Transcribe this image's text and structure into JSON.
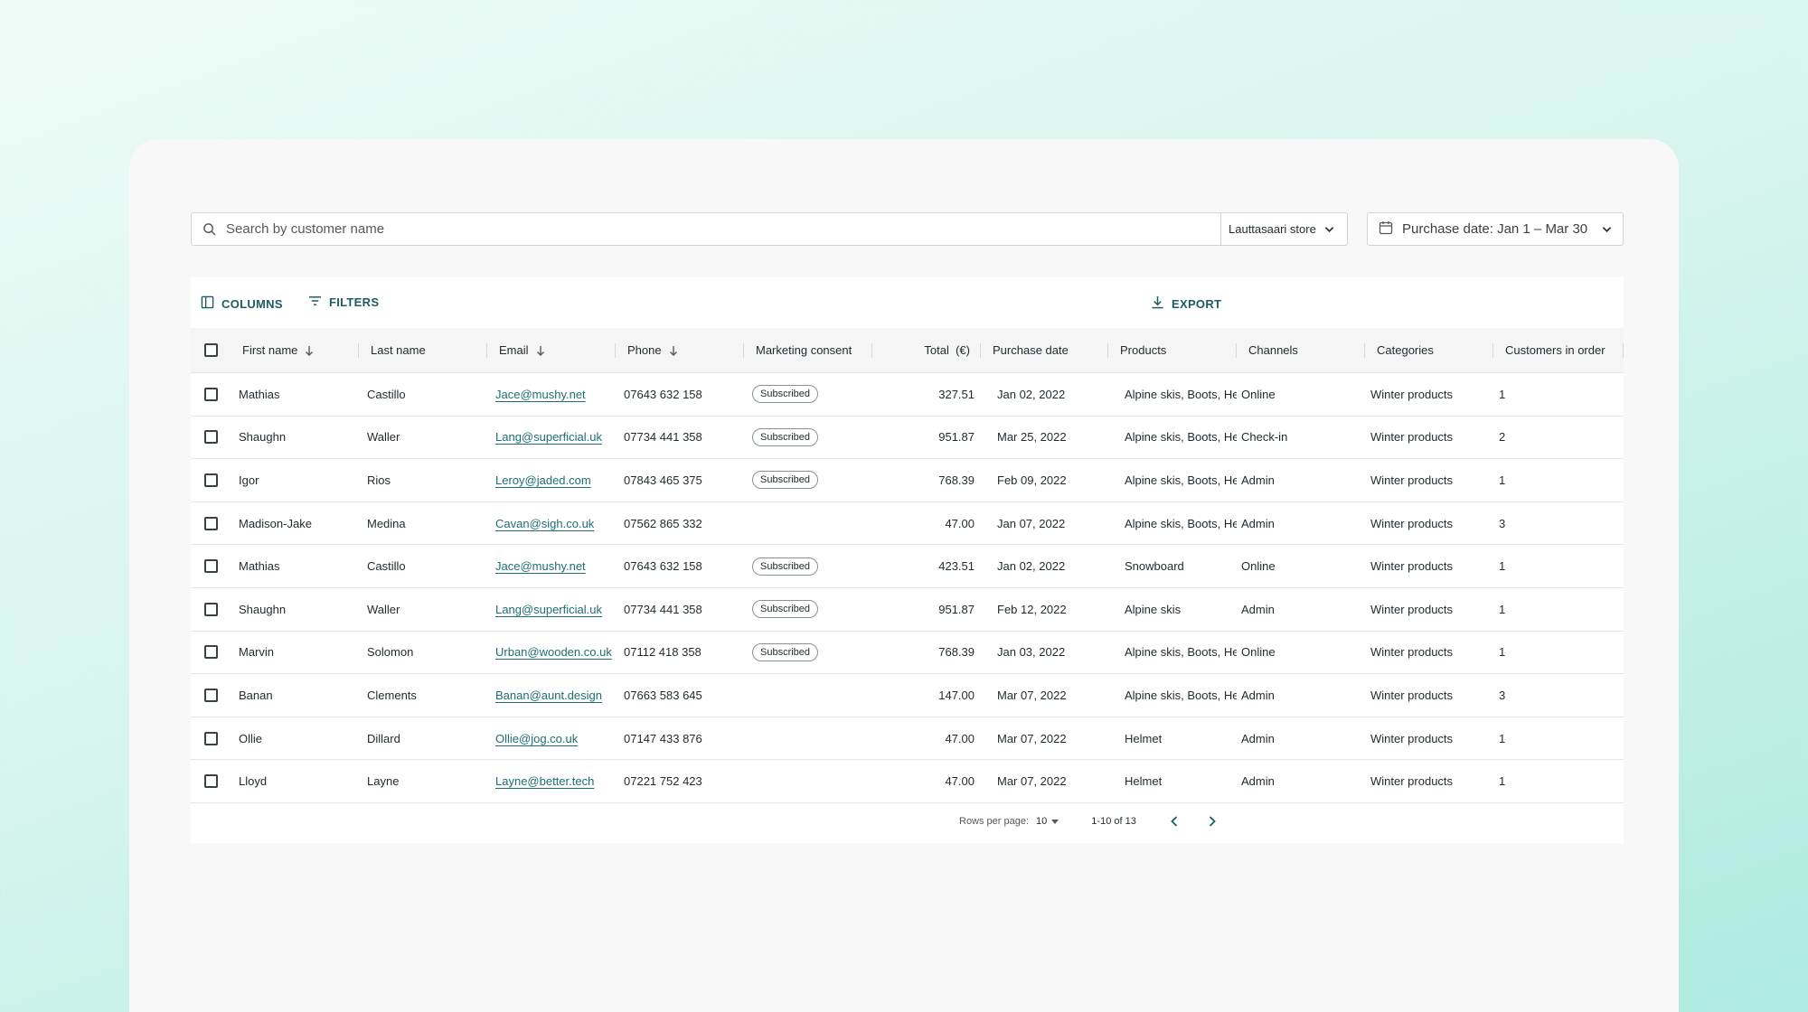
{
  "search": {
    "placeholder": "Search by customer name",
    "icon": "search-icon"
  },
  "store_select": {
    "value": "Lauttasaari store"
  },
  "date_filter": {
    "label": "Purchase date: Jan 1 – Mar 30"
  },
  "toolbar": {
    "columns_label": "COLUMNS",
    "filters_label": "FILTERS",
    "export_label": "EXPORT"
  },
  "colors": {
    "accent": "#1c5d63",
    "link": "#1c6e74",
    "panel": "#f8f8f8"
  },
  "table": {
    "headers": {
      "first_name": "First name",
      "last_name": "Last name",
      "email": "Email",
      "phone": "Phone",
      "consent": "Marketing consent",
      "total": "Total  (€)",
      "date": "Purchase date",
      "products": "Products",
      "channels": "Channels",
      "categories": "Categories",
      "customers": "Customers in order"
    },
    "rows": [
      {
        "first": "Mathias",
        "last": "Castillo",
        "email": "Jace@mushy.net",
        "phone": "07643 632 158",
        "consent": "Subscribed",
        "total": "327.51",
        "date": "Jan 02, 2022",
        "products": "Alpine skis, Boots, He..",
        "channel": "Online",
        "category": "Winter products",
        "customers": "1"
      },
      {
        "first": "Shaughn",
        "last": "Waller",
        "email": "Lang@superficial.uk",
        "phone": "07734 441 358",
        "consent": "Subscribed",
        "total": "951.87",
        "date": "Mar 25, 2022",
        "products": "Alpine skis, Boots, He..",
        "channel": "Check-in",
        "category": "Winter products",
        "customers": "2"
      },
      {
        "first": "Igor",
        "last": "Rios",
        "email": "Leroy@jaded.com",
        "phone": "07843 465 375",
        "consent": "Subscribed",
        "total": "768.39",
        "date": "Feb 09, 2022",
        "products": "Alpine skis, Boots, He..",
        "channel": "Admin",
        "category": "Winter products",
        "customers": "1"
      },
      {
        "first": "Madison-Jake",
        "last": "Medina",
        "email": "Cavan@sigh.co.uk",
        "phone": "07562 865 332",
        "consent": "",
        "total": "47.00",
        "date": "Jan 07, 2022",
        "products": "Alpine skis, Boots, He..",
        "channel": "Admin",
        "category": "Winter products",
        "customers": "3"
      },
      {
        "first": "Mathias",
        "last": "Castillo",
        "email": "Jace@mushy.net",
        "phone": "07643 632 158",
        "consent": "Subscribed",
        "total": "423.51",
        "date": "Jan 02, 2022",
        "products": "Snowboard",
        "channel": "Online",
        "category": "Winter products",
        "customers": "1"
      },
      {
        "first": "Shaughn",
        "last": "Waller",
        "email": "Lang@superficial.uk",
        "phone": "07734 441 358",
        "consent": "Subscribed",
        "total": "951.87",
        "date": "Feb 12, 2022",
        "products": "Alpine skis",
        "channel": "Admin",
        "category": "Winter products",
        "customers": "1"
      },
      {
        "first": "Marvin",
        "last": "Solomon",
        "email": "Urban@wooden.co.uk",
        "phone": "07112 418 358",
        "consent": "Subscribed",
        "total": "768.39",
        "date": "Jan 03, 2022",
        "products": "Alpine skis, Boots, He..",
        "channel": "Online",
        "category": "Winter products",
        "customers": "1"
      },
      {
        "first": "Banan",
        "last": "Clements",
        "email": "Banan@aunt.design",
        "phone": "07663 583 645",
        "consent": "",
        "total": "147.00",
        "date": "Mar 07, 2022",
        "products": "Alpine skis, Boots, He..",
        "channel": "Admin",
        "category": "Winter products",
        "customers": "3"
      },
      {
        "first": "Ollie",
        "last": "Dillard",
        "email": "Ollie@jog.co.uk",
        "phone": "07147 433 876",
        "consent": "",
        "total": "47.00",
        "date": "Mar 07, 2022",
        "products": "Helmet",
        "channel": "Admin",
        "category": "Winter products",
        "customers": "1"
      },
      {
        "first": "Lloyd",
        "last": "Layne",
        "email": "Layne@better.tech",
        "phone": "07221 752 423",
        "consent": "",
        "total": "47.00",
        "date": "Mar 07, 2022",
        "products": "Helmet",
        "channel": "Admin",
        "category": "Winter products",
        "customers": "1"
      }
    ]
  },
  "pagination": {
    "rows_label": "Rows per page:",
    "rows_value": "10",
    "range": "1-10 of 13"
  }
}
